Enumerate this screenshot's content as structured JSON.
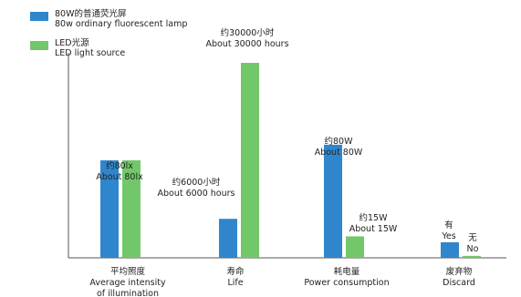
{
  "chart_data": {
    "type": "bar",
    "title": "",
    "xlabel": "",
    "ylabel": "",
    "grid": false,
    "legend_position": "top-left",
    "categories": [
      {
        "zh": "平均照度",
        "en": [
          "Average intensity",
          "of illumination"
        ]
      },
      {
        "zh": "寿命",
        "en": [
          "Life"
        ]
      },
      {
        "zh": "耗电量",
        "en": [
          "Power consumption"
        ]
      },
      {
        "zh": "废弃物",
        "en": [
          "Discard"
        ]
      }
    ],
    "series": [
      {
        "name": "80W的普通荧光屏",
        "name_en": "80w ordinary fluorescent lamp",
        "color": "#2f86cc",
        "values": [
          50,
          20,
          58,
          8
        ],
        "labels": [
          [
            "约80lx",
            "About 80lx"
          ],
          [
            "约6000小时",
            "About 6000 hours"
          ],
          [
            "约80W",
            "About 80W"
          ],
          [
            "有",
            "Yes"
          ]
        ]
      },
      {
        "name": "LED光源",
        "name_en": "LED light source",
        "color": "#73c76b",
        "values": [
          50,
          100,
          11,
          1
        ],
        "labels": [
          [
            "约80lx",
            "About 80lx"
          ],
          [
            "约30000小时",
            "About 30000 hours"
          ],
          [
            "约15W",
            "About 15W"
          ],
          [
            "无",
            "No"
          ]
        ]
      }
    ]
  }
}
